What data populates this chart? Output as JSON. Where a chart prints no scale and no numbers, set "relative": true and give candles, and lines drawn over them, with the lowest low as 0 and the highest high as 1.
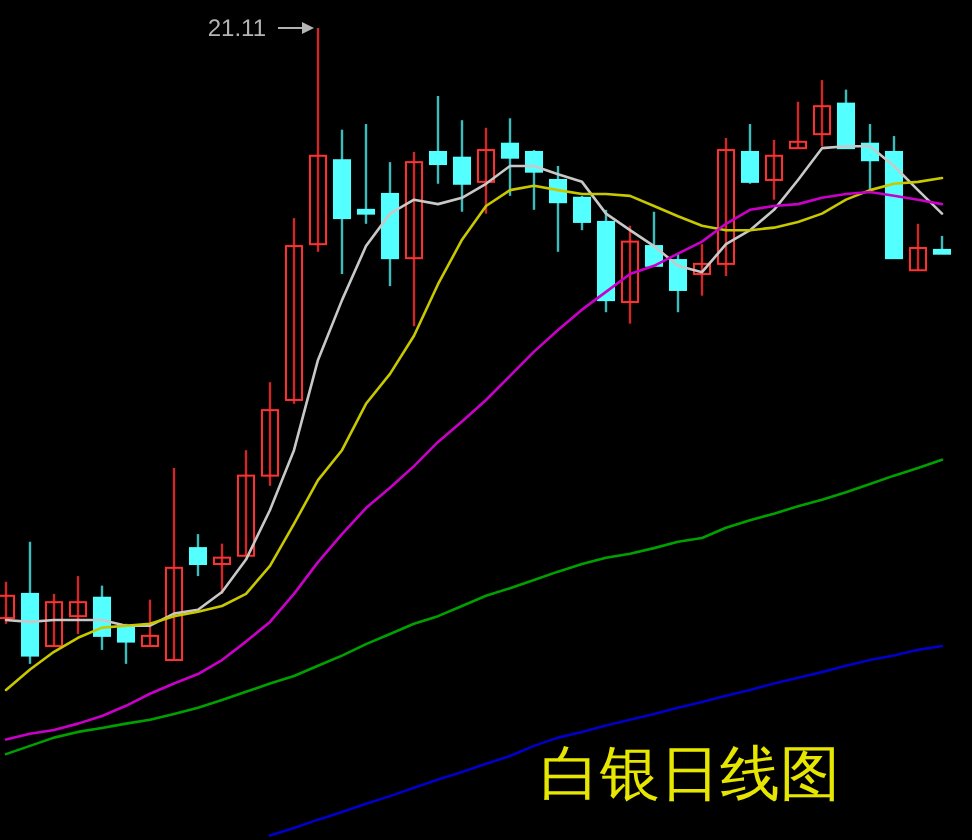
{
  "chart_data": {
    "type": "candlestick",
    "title": "白银日线图",
    "relative": true,
    "annotations": [
      "21.11"
    ],
    "categories": [
      null,
      null,
      null,
      null,
      null,
      null,
      null,
      null,
      null,
      null,
      null,
      null,
      null,
      null,
      null,
      null,
      null,
      null,
      null,
      null,
      null,
      null,
      null,
      null,
      null,
      null,
      null,
      null,
      null,
      null,
      null,
      null,
      null,
      null,
      null,
      null,
      null,
      null,
      null,
      null
    ],
    "ohlc": [
      [
        0.072,
        0.129,
        0.063,
        0.107
      ],
      [
        0.11,
        0.192,
        0,
        0.013
      ],
      [
        0.028,
        0.11,
        0.028,
        0.097
      ],
      [
        0.075,
        0.138,
        0.047,
        0.097
      ],
      [
        0.104,
        0.123,
        0.022,
        0.044
      ],
      [
        0.057,
        0.063,
        0,
        0.035
      ],
      [
        0.028,
        0.101,
        0.028,
        0.044
      ],
      [
        0.006,
        0.308,
        0.006,
        0.151
      ],
      [
        0.182,
        0.204,
        0.138,
        0.157
      ],
      [
        0.157,
        0.189,
        0.11,
        0.167
      ],
      [
        0.17,
        0.336,
        0.17,
        0.296
      ],
      [
        0.296,
        0.443,
        0.28,
        0.399
      ],
      [
        0.415,
        0.701,
        0.409,
        0.657
      ],
      [
        0.66,
        1,
        0.648,
        0.799
      ],
      [
        0.792,
        0.84,
        0.613,
        0.701
      ],
      [
        0.714,
        0.849,
        0.692,
        0.708
      ],
      [
        0.739,
        0.789,
        0.594,
        0.638
      ],
      [
        0.638,
        0.805,
        0.531,
        0.789
      ],
      [
        0.805,
        0.893,
        0.755,
        0.786
      ],
      [
        0.796,
        0.855,
        0.711,
        0.755
      ],
      [
        0.758,
        0.843,
        0.708,
        0.808
      ],
      [
        0.818,
        0.858,
        0.736,
        0.796
      ],
      [
        0.805,
        0.808,
        0.714,
        0.774
      ],
      [
        0.761,
        0.783,
        0.648,
        0.726
      ],
      [
        0.733,
        0.736,
        0.682,
        0.695
      ],
      [
        0.695,
        0.714,
        0.553,
        0.572
      ],
      [
        0.569,
        0.689,
        0.535,
        0.664
      ],
      [
        0.657,
        0.711,
        0.626,
        0.626
      ],
      [
        0.635,
        0.645,
        0.553,
        0.588
      ],
      [
        0.613,
        0.66,
        0.579,
        0.629
      ],
      [
        0.629,
        0.827,
        0.61,
        0.808
      ],
      [
        0.805,
        0.849,
        0.755,
        0.758
      ],
      [
        0.761,
        0.824,
        0.73,
        0.799
      ],
      [
        0.811,
        0.884,
        0.811,
        0.821
      ],
      [
        0.833,
        0.918,
        0.814,
        0.877
      ],
      [
        0.881,
        0.903,
        0.811,
        0.811
      ],
      [
        0.818,
        0.849,
        0.742,
        0.792
      ],
      [
        0.805,
        0.83,
        0.638,
        0.638
      ],
      [
        0.619,
        0.692,
        0.619,
        0.654
      ],
      [
        0.651,
        0.673,
        0.645,
        0.645
      ]
    ],
    "series": [
      {
        "type": "line",
        "color": "#c8c8c8",
        "values": [
          0.069,
          0.066,
          0.069,
          0.069,
          0.069,
          0.06,
          0.06,
          0.079,
          0.085,
          0.113,
          0.164,
          0.242,
          0.336,
          0.478,
          0.572,
          0.657,
          0.708,
          0.73,
          0.723,
          0.733,
          0.755,
          0.783,
          0.783,
          0.77,
          0.758,
          0.708,
          0.682,
          0.657,
          0.626,
          0.616,
          0.66,
          0.682,
          0.714,
          0.761,
          0.811,
          0.814,
          0.814,
          0.783,
          0.745,
          0.708
        ]
      },
      {
        "type": "line",
        "color": "#c8c800",
        "values": [
          -0.041,
          -0.009,
          0.019,
          0.041,
          0.057,
          0.06,
          0.063,
          0.075,
          0.082,
          0.091,
          0.11,
          0.154,
          0.22,
          0.289,
          0.336,
          0.409,
          0.456,
          0.516,
          0.597,
          0.667,
          0.72,
          0.745,
          0.752,
          0.745,
          0.739,
          0.739,
          0.736,
          0.72,
          0.704,
          0.689,
          0.682,
          0.682,
          0.686,
          0.695,
          0.708,
          0.73,
          0.745,
          0.755,
          0.758,
          0.764
        ]
      },
      {
        "type": "line",
        "color": "#c800c8",
        "values": [
          -0.119,
          -0.11,
          -0.104,
          -0.094,
          -0.082,
          -0.066,
          -0.047,
          -0.031,
          -0.016,
          0.006,
          0.035,
          0.066,
          0.11,
          0.16,
          0.204,
          0.245,
          0.277,
          0.311,
          0.349,
          0.381,
          0.415,
          0.453,
          0.491,
          0.525,
          0.557,
          0.585,
          0.613,
          0.626,
          0.645,
          0.664,
          0.692,
          0.714,
          0.72,
          0.723,
          0.733,
          0.739,
          0.742,
          0.736,
          0.73,
          0.723
        ]
      },
      {
        "type": "line",
        "color": "#00a000",
        "values": [
          -0.142,
          -0.129,
          -0.116,
          -0.107,
          -0.101,
          -0.094,
          -0.088,
          -0.079,
          -0.069,
          -0.057,
          -0.044,
          -0.031,
          -0.019,
          -0.003,
          0.013,
          0.031,
          0.047,
          0.063,
          0.075,
          0.091,
          0.107,
          0.119,
          0.132,
          0.145,
          0.157,
          0.167,
          0.173,
          0.182,
          0.192,
          0.198,
          0.214,
          0.226,
          0.236,
          0.248,
          0.258,
          0.27,
          0.283,
          0.296,
          0.308,
          0.321
        ]
      },
      {
        "type": "line",
        "color": "#0000c8",
        "values": [
          null,
          null,
          null,
          null,
          null,
          null,
          null,
          null,
          null,
          null,
          null,
          -0.27,
          -0.258,
          -0.245,
          -0.233,
          -0.22,
          -0.208,
          -0.195,
          -0.182,
          -0.17,
          -0.157,
          -0.145,
          -0.129,
          -0.116,
          -0.107,
          -0.097,
          -0.088,
          -0.079,
          -0.069,
          -0.06,
          -0.05,
          -0.041,
          -0.031,
          -0.022,
          -0.013,
          -0.003,
          0.006,
          0.013,
          0.022,
          0.028
        ]
      }
    ]
  }
}
